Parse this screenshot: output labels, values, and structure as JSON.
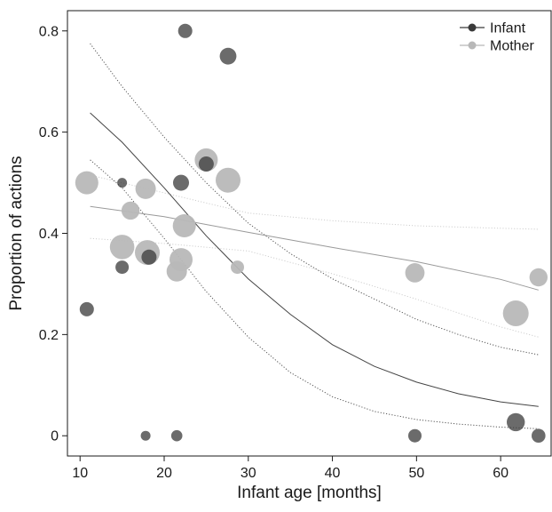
{
  "chart_data": {
    "type": "scatter",
    "xlabel": "Infant age [months]",
    "ylabel": "Proportion of actions",
    "xlim": [
      8.5,
      66
    ],
    "ylim": [
      -0.04,
      0.84
    ],
    "x_ticks": [
      10,
      20,
      30,
      40,
      50,
      60
    ],
    "y_ticks": [
      0,
      0.2,
      0.4,
      0.6,
      0.8
    ],
    "x_tick_labels": [
      "10",
      "20",
      "30",
      "40",
      "50",
      "60"
    ],
    "y_tick_labels": [
      "0",
      "0.2",
      "0.4",
      "0.6",
      "0.8"
    ],
    "grid": false,
    "legend_position": "top-right",
    "legend": [
      {
        "name": "Infant",
        "color": "#3a3a3a"
      },
      {
        "name": "Mother",
        "color": "#b8b8b8"
      }
    ],
    "series": [
      {
        "name": "Infant",
        "color": "#3a3a3a",
        "points": [
          {
            "x": 10.8,
            "y": 0.25,
            "size": 0.3
          },
          {
            "x": 15.0,
            "y": 0.5,
            "size": 0.1
          },
          {
            "x": 15.0,
            "y": 0.333,
            "size": 0.25
          },
          {
            "x": 17.8,
            "y": 0.0,
            "size": 0.1
          },
          {
            "x": 18.2,
            "y": 0.353,
            "size": 0.35
          },
          {
            "x": 21.5,
            "y": 0.0,
            "size": 0.15
          },
          {
            "x": 22.0,
            "y": 0.5,
            "size": 0.4
          },
          {
            "x": 22.5,
            "y": 0.8,
            "size": 0.3
          },
          {
            "x": 25.0,
            "y": 0.537,
            "size": 0.35
          },
          {
            "x": 27.6,
            "y": 0.75,
            "size": 0.45
          },
          {
            "x": 49.8,
            "y": 0.0,
            "size": 0.25
          },
          {
            "x": 61.8,
            "y": 0.027,
            "size": 0.55
          },
          {
            "x": 64.5,
            "y": 0.0,
            "size": 0.28
          }
        ],
        "fit": {
          "x": [
            11.2,
            15,
            20,
            25,
            30,
            35,
            40,
            45,
            50,
            55,
            60,
            64.5
          ],
          "y": [
            0.638,
            0.58,
            0.49,
            0.395,
            0.31,
            0.24,
            0.18,
            0.137,
            0.106,
            0.083,
            0.067,
            0.058
          ],
          "ci_lower": [
            0.545,
            0.49,
            0.39,
            0.285,
            0.195,
            0.125,
            0.077,
            0.048,
            0.032,
            0.023,
            0.017,
            0.014
          ],
          "ci_upper": [
            0.775,
            0.69,
            0.59,
            0.5,
            0.42,
            0.36,
            0.31,
            0.27,
            0.23,
            0.2,
            0.175,
            0.16
          ]
        }
      },
      {
        "name": "Mother",
        "color": "#b8b8b8",
        "points": [
          {
            "x": 10.8,
            "y": 0.5,
            "size": 1.0
          },
          {
            "x": 15.0,
            "y": 0.373,
            "size": 1.15
          },
          {
            "x": 16.0,
            "y": 0.445,
            "size": 0.55
          },
          {
            "x": 17.8,
            "y": 0.488,
            "size": 0.75
          },
          {
            "x": 18.0,
            "y": 0.362,
            "size": 1.2
          },
          {
            "x": 21.5,
            "y": 0.325,
            "size": 0.75
          },
          {
            "x": 22.0,
            "y": 0.348,
            "size": 1.0
          },
          {
            "x": 22.4,
            "y": 0.415,
            "size": 1.0
          },
          {
            "x": 25.0,
            "y": 0.545,
            "size": 1.0
          },
          {
            "x": 27.6,
            "y": 0.505,
            "size": 1.2
          },
          {
            "x": 28.7,
            "y": 0.333,
            "size": 0.25
          },
          {
            "x": 49.8,
            "y": 0.322,
            "size": 0.65
          },
          {
            "x": 61.8,
            "y": 0.242,
            "size": 1.3
          },
          {
            "x": 64.5,
            "y": 0.313,
            "size": 0.55
          }
        ],
        "fit": {
          "x": [
            11.2,
            20,
            30,
            40,
            50,
            60,
            64.5
          ],
          "y": [
            0.453,
            0.433,
            0.402,
            0.372,
            0.344,
            0.309,
            0.288
          ],
          "ci_lower": [
            0.39,
            0.38,
            0.365,
            0.32,
            0.27,
            0.215,
            0.195
          ],
          "ci_upper": [
            0.515,
            0.48,
            0.44,
            0.425,
            0.415,
            0.41,
            0.408
          ]
        }
      }
    ]
  }
}
